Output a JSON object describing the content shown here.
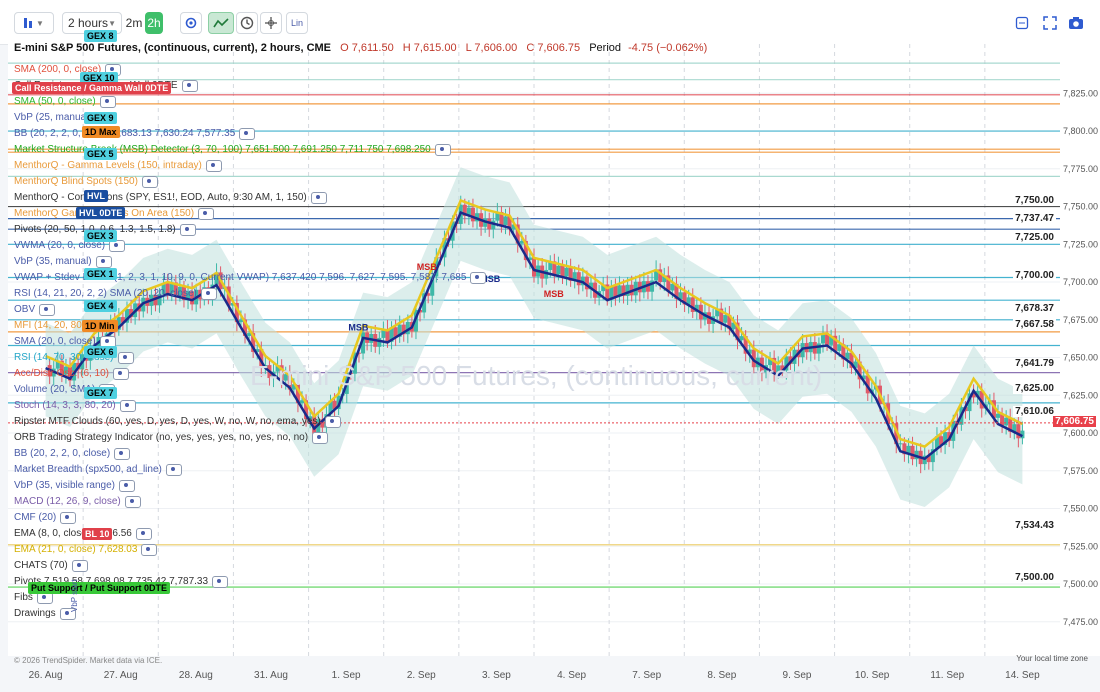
{
  "toolbar": {
    "interval_label": "2 hours",
    "quick_intervals": [
      "2m",
      "2h"
    ],
    "lin_label": "Lin"
  },
  "header": {
    "title": "E-mini S&P 500 Futures, (continuous, current), 2 hours, CME",
    "open": "O 7,611.50",
    "high": "H 7,615.00",
    "low": "L 7,606.00",
    "close": "C 7,606.75",
    "period": "Period",
    "change": "-4.75 (−0.062%)"
  },
  "legend": [
    {
      "label": "SMA (200, 0, close)",
      "color": "#e0503c"
    },
    {
      "label": "Call Resistance / Gamma Wall 0DTE",
      "color": "#ffffff"
    },
    {
      "label": "SMA (50, 0, close)",
      "color": "#2eb82e"
    },
    {
      "label": "VbP (25, manual)",
      "color": "#4a5ca8"
    },
    {
      "label": "BB (20, 2, 2, 0, close)  7,683.13  7,630.24  7,577.35",
      "color": "#4a5ca8"
    },
    {
      "label": "Market Structure Break (MSB) Detector (3, 70, 100)  7,651.500  7,691.250  7,711.750  7,698.250",
      "color": "#21a821"
    },
    {
      "label": "MenthorQ - Gamma Levels (150, intraday)",
      "color": "#e89a3a"
    },
    {
      "label": "MenthorQ Blind Spots (150)",
      "color": "#e89a3a"
    },
    {
      "label": "MenthorQ - Conversions (SPY, ES1!, EOD, Auto, 9:30 AM, 1, 150)",
      "color": "#333333"
    },
    {
      "label": "MenthorQ Gamma Levels On Area (150)",
      "color": "#e89a3a"
    },
    {
      "label": "Pivots (20, 50, 1.0, 0.6, 1.3, 1.5, 1.8)",
      "color": "#333333"
    },
    {
      "label": "VWMA (20, 0, close)",
      "color": "#4a5ca8"
    },
    {
      "label": "VbP (35, manual)",
      "color": "#4a5ca8"
    },
    {
      "label": "VWAP + Stdev Bands (1, 2, 3, 1, 10, 9, 0, Current VWAP)  7,637.420  7,596.  7,627.  7,595.  7,587.  7,685",
      "color": "#4a5ca8"
    },
    {
      "label": "RSI (14, 21, 20, 2, 2)  SMA (20, 20, close)",
      "color": "#4a5ca8"
    },
    {
      "label": "OBV",
      "color": "#4a5ca8"
    },
    {
      "label": "MFI (14, 20, 80)",
      "color": "#e89a3a"
    },
    {
      "label": "SMA (20, 0, close)",
      "color": "#4a5ca8"
    },
    {
      "label": "RSI (14, 70, 30, close)",
      "color": "#24a6c8"
    },
    {
      "label": "Acc/Distr Osc. (6, 10)",
      "color": "#e0503c"
    },
    {
      "label": "Volume (20, SMA)",
      "color": "#4a5ca8"
    },
    {
      "label": "Stoch (14, 3, 3, 80, 20)",
      "color": "#7a5ca8"
    },
    {
      "label": "Ripster MTF Clouds (60, yes, D, yes, D, yes, W, no, W, no, ema, yes)",
      "color": "#333333"
    },
    {
      "label": "ORB Trading Strategy Indicator (no, yes, yes, yes, no, yes, no, no)",
      "color": "#333333"
    },
    {
      "label": "BB (20, 2, 2, 0, close)",
      "color": "#4a5ca8"
    },
    {
      "label": "Market Breadth (spx500, ad_line)",
      "color": "#4a5ca8"
    },
    {
      "label": "VbP (35, visible range)",
      "color": "#4a5ca8"
    },
    {
      "label": "MACD (12, 26, 9, close)",
      "color": "#7a5ca8"
    },
    {
      "label": "CMF (20)",
      "color": "#4a5ca8"
    },
    {
      "label": "EMA (8, 0, close)  7,616.56",
      "color": "#333333"
    },
    {
      "label": "EMA (21, 0, close)  7,628.03",
      "color": "#d4b000"
    },
    {
      "label": "CHATS (70)",
      "color": "#333333"
    },
    {
      "label": "Pivots  7,519.58  7,698.08  7,735.42  7,787.33",
      "color": "#333333"
    },
    {
      "label": "Fibs",
      "color": "#333333"
    },
    {
      "label": "Drawings",
      "color": "#333333"
    }
  ],
  "tags": [
    {
      "text": "GEX 8",
      "bg": "#4fd0e0",
      "fg": "#000000"
    },
    {
      "text": "GEX 10",
      "bg": "#4fd0e0",
      "fg": "#000000"
    },
    {
      "text": "Call Resistance / Gamma Wall 0DTE",
      "bg": "#e0404a",
      "fg": "#ffffff"
    },
    {
      "text": "GEX 9",
      "bg": "#4fd0e0",
      "fg": "#000000"
    },
    {
      "text": "1D Max",
      "bg": "#f08a24",
      "fg": "#000000"
    },
    {
      "text": "GEX 5",
      "bg": "#4fd0e0",
      "fg": "#000000"
    },
    {
      "text": "HVL",
      "bg": "#1a4ea0",
      "fg": "#ffffff"
    },
    {
      "text": "HVL 0DTE",
      "bg": "#1a4ea0",
      "fg": "#ffffff"
    },
    {
      "text": "GEX 3",
      "bg": "#4fd0e0",
      "fg": "#000000"
    },
    {
      "text": "GEX 1",
      "bg": "#4fd0e0",
      "fg": "#000000"
    },
    {
      "text": "GEX 4",
      "bg": "#4fd0e0",
      "fg": "#000000"
    },
    {
      "text": "1D Min",
      "bg": "#f08a24",
      "fg": "#000000"
    },
    {
      "text": "GEX 6",
      "bg": "#4fd0e0",
      "fg": "#000000"
    },
    {
      "text": "GEX 7",
      "bg": "#4fd0e0",
      "fg": "#000000"
    },
    {
      "text": "BL 10",
      "bg": "#e0404a",
      "fg": "#ffffff"
    },
    {
      "text": "Put Support / Put Support 0DTE",
      "bg": "#38c838",
      "fg": "#000000"
    }
  ],
  "watermark": "E-mini S&P 500 Futures, (continuous, current)",
  "footer": {
    "copyright": "© 2026 TrendSpider. Market data via ICE.",
    "timezone": "Your local time zone",
    "vbp_start": "VbP start"
  },
  "msb_labels": [
    "MSB",
    "MSB",
    "MSB",
    "MSB"
  ],
  "colors": {
    "up": "#3fb8a8",
    "down": "#e05a6a",
    "bull_break": "#27d827",
    "bear_break": "#9a34d8",
    "price_tag": "#e8404a"
  },
  "chart_data": {
    "type": "candlestick",
    "title": "E-mini S&P 500 Futures, (continuous, current), 2 hours, CME",
    "x_tick_labels": [
      "26. Aug",
      "27. Aug",
      "28. Aug",
      "31. Aug",
      "1. Sep",
      "2. Sep",
      "3. Sep",
      "4. Sep",
      "7. Sep",
      "8. Sep",
      "9. Sep",
      "10. Sep",
      "11. Sep",
      "14. Sep"
    ],
    "y_tick_labels": [
      "7,825.00",
      "7,800.00",
      "7,775.00",
      "7,750.00",
      "7,725.00",
      "7,700.00",
      "7,675.00",
      "7,650.00",
      "7,625.00",
      "7,600.00",
      "7,575.00",
      "7,550.00",
      "7,525.00",
      "7,500.00",
      "7,475.00"
    ],
    "ylim": [
      7455,
      7855
    ],
    "current_price": 7606.75,
    "price_labels": [
      7750.0,
      7737.47,
      7725.0,
      7700.0,
      7678.37,
      7667.58,
      7641.79,
      7625.0,
      7610.06,
      7534.43,
      7500.0
    ],
    "grid": true,
    "legend_position": "top-left",
    "close_path": [
      [
        0,
        7645
      ],
      [
        0.5,
        7638
      ],
      [
        1,
        7660
      ],
      [
        1.5,
        7672
      ],
      [
        2,
        7688
      ],
      [
        2.5,
        7694
      ],
      [
        3,
        7690
      ],
      [
        3.5,
        7700
      ],
      [
        4,
        7672
      ],
      [
        4.5,
        7645
      ],
      [
        5,
        7632
      ],
      [
        5.5,
        7605
      ],
      [
        6,
        7620
      ],
      [
        6.5,
        7665
      ],
      [
        7,
        7662
      ],
      [
        7.5,
        7672
      ],
      [
        8,
        7710
      ],
      [
        8.5,
        7748
      ],
      [
        9,
        7742
      ],
      [
        9.5,
        7738
      ],
      [
        10,
        7710
      ],
      [
        10.5,
        7706
      ],
      [
        11,
        7702
      ],
      [
        11.5,
        7690
      ],
      [
        12,
        7696
      ],
      [
        12.5,
        7702
      ],
      [
        13,
        7690
      ],
      [
        13.5,
        7680
      ],
      [
        14,
        7672
      ],
      [
        14.5,
        7650
      ],
      [
        15,
        7640
      ],
      [
        15.5,
        7658
      ],
      [
        16,
        7660
      ],
      [
        16.5,
        7648
      ],
      [
        17,
        7625
      ],
      [
        17.5,
        7590
      ],
      [
        18,
        7585
      ],
      [
        18.5,
        7598
      ],
      [
        19,
        7630
      ],
      [
        19.5,
        7608
      ],
      [
        20,
        7600
      ]
    ],
    "key_levels": [
      {
        "value": 7845,
        "color": "#9bd3c8"
      },
      {
        "value": 7834,
        "color": "#9bd3c8"
      },
      {
        "value": 7824,
        "color": "#e0404a"
      },
      {
        "value": 7818,
        "color": "#f08a24"
      },
      {
        "value": 7800,
        "color": "#24a6c8"
      },
      {
        "value": 7788,
        "color": "#f08a24"
      },
      {
        "value": 7786,
        "color": "#f08a24"
      },
      {
        "value": 7770,
        "color": "#9bd3c8"
      },
      {
        "value": 7750,
        "color": "#333333"
      },
      {
        "value": 7742,
        "color": "#1a4ea0"
      },
      {
        "value": 7735,
        "color": "#1a4ea0"
      },
      {
        "value": 7725,
        "color": "#24a6c8"
      },
      {
        "value": 7703,
        "color": "#24a6c8"
      },
      {
        "value": 7688,
        "color": "#24a6c8"
      },
      {
        "value": 7675,
        "color": "#24a6c8"
      },
      {
        "value": 7667,
        "color": "#f08a24"
      },
      {
        "value": 7658,
        "color": "#24a6c8"
      },
      {
        "value": 7640,
        "color": "#7a5ca8"
      },
      {
        "value": 7620,
        "color": "#24a6c8"
      },
      {
        "value": 7526,
        "color": "#e8c24a"
      },
      {
        "value": 7498,
        "color": "#38c838"
      }
    ]
  }
}
